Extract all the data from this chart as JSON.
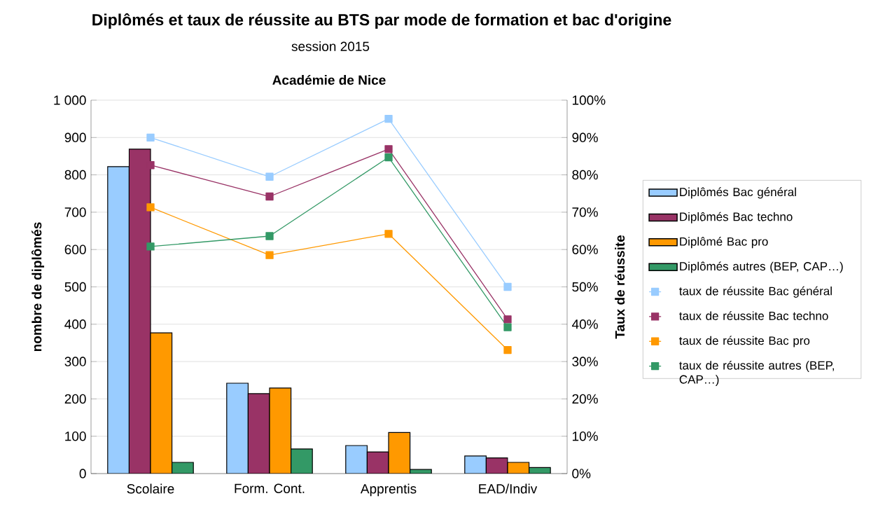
{
  "chart_data": {
    "type": "bar",
    "title": "Diplômés et taux de réussite au BTS  par mode de formation et bac d'origine",
    "subtitle": "session  2015",
    "annotations": [
      "Académie de Nice"
    ],
    "xlabel": null,
    "ylabel": "nombre de diplômés",
    "y2label": "Taux de réussite",
    "categories": [
      "Scolaire",
      "Form. Cont.",
      "Apprentis",
      "EAD/Indiv"
    ],
    "series": [
      {
        "name": "Diplômés Bac général",
        "color": "#99ccff",
        "values": [
          822,
          242,
          75,
          47
        ]
      },
      {
        "name": "Diplômés Bac techno",
        "color": "#993366",
        "values": [
          869,
          214,
          58,
          42
        ]
      },
      {
        "name": "Diplômé Bac pro",
        "color": "#ff9900",
        "values": [
          377,
          229,
          110,
          30
        ]
      },
      {
        "name": "Diplômés autres (BEP, CAP…)",
        "color": "#339966",
        "values": [
          30,
          66,
          11,
          16
        ]
      },
      {
        "name": "taux de réussite Bac général",
        "type": "line",
        "axis": "y2",
        "marker": "square",
        "color": "#99ccff",
        "values": [
          90,
          79.5,
          95,
          50
        ]
      },
      {
        "name": "taux de réussite Bac techno",
        "type": "line",
        "axis": "y2",
        "marker": "square",
        "color": "#993366",
        "values": [
          82.6,
          74.2,
          86.9,
          41.3
        ]
      },
      {
        "name": "taux de réussite Bac pro",
        "type": "line",
        "axis": "y2",
        "marker": "square",
        "color": "#ff9900",
        "values": [
          71.3,
          58.5,
          64.2,
          33.1
        ]
      },
      {
        "name": "taux de réussite autres (BEP, CAP…)",
        "type": "line",
        "axis": "y2",
        "marker": "square",
        "color": "#339966",
        "values": [
          60.8,
          63.6,
          84.7,
          39.2
        ]
      }
    ],
    "ylim": [
      0,
      1000
    ],
    "yticks": [
      0,
      100,
      200,
      300,
      400,
      500,
      600,
      700,
      800,
      900,
      {
        "value": 1000,
        "label": "1 000"
      }
    ],
    "y2lim": [
      0,
      100
    ],
    "y2ticks": [
      {
        "value": 0,
        "label": "0%"
      },
      {
        "value": 10,
        "label": "10%"
      },
      {
        "value": 20,
        "label": "20%"
      },
      {
        "value": 30,
        "label": "30%"
      },
      {
        "value": 40,
        "label": "40%"
      },
      {
        "value": 50,
        "label": "50%"
      },
      {
        "value": 60,
        "label": "60%"
      },
      {
        "value": 70,
        "label": "70%"
      },
      {
        "value": 80,
        "label": "80%"
      },
      {
        "value": 90,
        "label": "90%"
      },
      {
        "value": 100,
        "label": "100%"
      }
    ],
    "grid": "y",
    "legend": "right"
  }
}
